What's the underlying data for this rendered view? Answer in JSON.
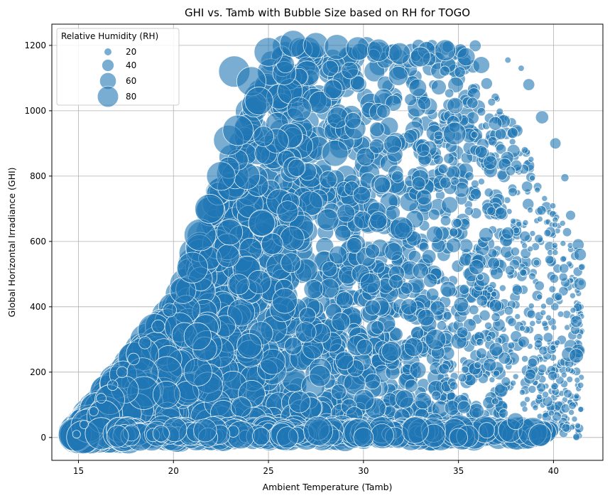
{
  "chart_data": {
    "type": "scatter",
    "title": "GHI vs. Tamb with Bubble Size based on RH for TOGO",
    "xlabel": "Ambient Temperature (Tamb)",
    "ylabel": "Global Horizontal Irradiance (GHI)",
    "xlim": [
      13.6,
      42.6
    ],
    "ylim": [
      -70,
      1265
    ],
    "xticks": [
      15,
      20,
      25,
      30,
      35,
      40
    ],
    "yticks": [
      0,
      200,
      400,
      600,
      800,
      1000,
      1200
    ],
    "grid": true,
    "series_color": "#1f77b4",
    "legend": {
      "title": "Relative Humidity (RH)",
      "placement": "top-left",
      "entries": [
        {
          "label": "20",
          "rh": 20
        },
        {
          "label": "40",
          "rh": 40
        },
        {
          "label": "60",
          "rh": 60
        },
        {
          "label": "80",
          "rh": 80
        }
      ]
    },
    "points": [
      {
        "x": 14.9,
        "y": 10,
        "rh": 12
      },
      {
        "x": 15.3,
        "y": 40,
        "rh": 14
      },
      {
        "x": 15.8,
        "y": 80,
        "rh": 16
      },
      {
        "x": 16.2,
        "y": 120,
        "rh": 18
      },
      {
        "x": 16.8,
        "y": 160,
        "rh": 20
      },
      {
        "x": 17.3,
        "y": 200,
        "rh": 22
      },
      {
        "x": 17.9,
        "y": 240,
        "rh": 24
      },
      {
        "x": 18.5,
        "y": 290,
        "rh": 26
      },
      {
        "x": 19.2,
        "y": 340,
        "rh": 28
      },
      {
        "x": 19.8,
        "y": 390,
        "rh": 30
      },
      {
        "x": 20.5,
        "y": 450,
        "rh": 70
      },
      {
        "x": 21.0,
        "y": 520,
        "rh": 85
      },
      {
        "x": 21.4,
        "y": 620,
        "rh": 88
      },
      {
        "x": 21.9,
        "y": 700,
        "rh": 80
      },
      {
        "x": 22.5,
        "y": 800,
        "rh": 78
      },
      {
        "x": 22.9,
        "y": 910,
        "rh": 82
      },
      {
        "x": 23.4,
        "y": 940,
        "rh": 84
      },
      {
        "x": 23.2,
        "y": 1120,
        "rh": 86
      },
      {
        "x": 24.1,
        "y": 1090,
        "rh": 80
      },
      {
        "x": 24.5,
        "y": 1030,
        "rh": 76
      },
      {
        "x": 25.0,
        "y": 1180,
        "rh": 78
      },
      {
        "x": 26.3,
        "y": 1205,
        "rh": 72
      },
      {
        "x": 27.5,
        "y": 1200,
        "rh": 68
      },
      {
        "x": 28.6,
        "y": 1195,
        "rh": 66
      },
      {
        "x": 29.7,
        "y": 1190,
        "rh": 62
      },
      {
        "x": 30.8,
        "y": 1185,
        "rh": 58
      },
      {
        "x": 31.9,
        "y": 1175,
        "rh": 55
      },
      {
        "x": 33.0,
        "y": 1165,
        "rh": 50
      },
      {
        "x": 34.3,
        "y": 1185,
        "rh": 54
      },
      {
        "x": 35.4,
        "y": 1165,
        "rh": 44
      },
      {
        "x": 36.2,
        "y": 1140,
        "rh": 40
      },
      {
        "x": 37.6,
        "y": 1155,
        "rh": 6
      },
      {
        "x": 38.3,
        "y": 1130,
        "rh": 6
      },
      {
        "x": 38.7,
        "y": 1080,
        "rh": 24
      },
      {
        "x": 39.4,
        "y": 980,
        "rh": 28
      },
      {
        "x": 40.1,
        "y": 900,
        "rh": 22
      },
      {
        "x": 40.6,
        "y": 795,
        "rh": 12
      },
      {
        "x": 40.9,
        "y": 680,
        "rh": 18
      },
      {
        "x": 41.3,
        "y": 590,
        "rh": 24
      },
      {
        "x": 41.4,
        "y": 560,
        "rh": 26
      },
      {
        "x": 41.4,
        "y": 470,
        "rh": 26
      },
      {
        "x": 41.2,
        "y": 355,
        "rh": 24
      },
      {
        "x": 40.9,
        "y": 280,
        "rh": 28
      },
      {
        "x": 41.3,
        "y": 265,
        "rh": 30
      },
      {
        "x": 40.8,
        "y": 255,
        "rh": 32
      },
      {
        "x": 41.2,
        "y": 250,
        "rh": 32
      },
      {
        "x": 26.0,
        "y": 0,
        "rh": 55
      },
      {
        "x": 30.0,
        "y": 0,
        "rh": 50
      },
      {
        "x": 35.0,
        "y": 0,
        "rh": 45
      },
      {
        "x": 38.0,
        "y": 50,
        "rh": 40
      },
      {
        "x": 32.0,
        "y": 640,
        "rh": 60
      },
      {
        "x": 34.8,
        "y": 930,
        "rh": 58
      },
      {
        "x": 28.5,
        "y": 870,
        "rh": 70
      },
      {
        "x": 33.8,
        "y": 300,
        "rh": 52
      }
    ]
  }
}
